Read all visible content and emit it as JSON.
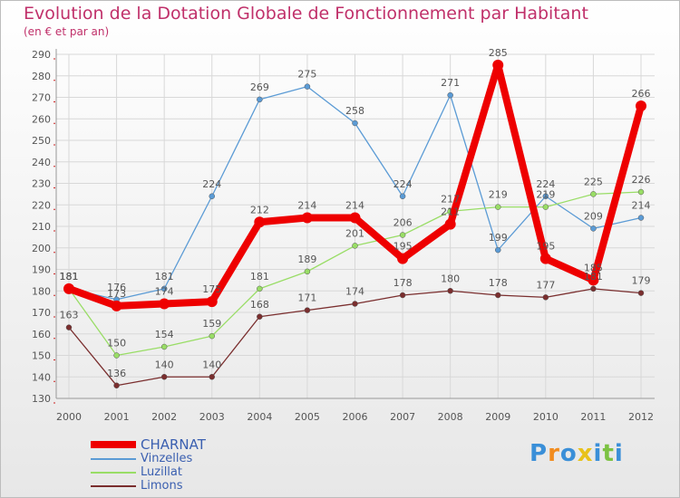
{
  "title": "Evolution de la Dotation Globale de Fonctionnement par Habitant",
  "subtitle": "(en € et par an)",
  "logo": "Proxiti",
  "colors": {
    "title": "#c0306a",
    "axis": "#999999",
    "grid": "#d8d8d8",
    "label": "#555555",
    "legend_text": "#3a5fb0"
  },
  "chart_data": {
    "type": "line",
    "title": "Evolution de la Dotation Globale de Fonctionnement par Habitant",
    "subtitle": "(en € et par an)",
    "xlabel": "",
    "ylabel": "",
    "x": [
      "2000",
      "2001",
      "2002",
      "2003",
      "2004",
      "2005",
      "2006",
      "2007",
      "2008",
      "2009",
      "2010",
      "2011",
      "2012"
    ],
    "ylim": [
      130,
      290
    ],
    "yticks": [
      130,
      140,
      150,
      160,
      170,
      180,
      190,
      200,
      210,
      220,
      230,
      240,
      250,
      260,
      270,
      280,
      290
    ],
    "grid": true,
    "legend_position": "bottom-left",
    "series": [
      {
        "name": "Vinzelles",
        "color": "#5b9bd5",
        "values": [
          181,
          176,
          181,
          224,
          269,
          275,
          258,
          224,
          271,
          199,
          224,
          209,
          214
        ]
      },
      {
        "name": "Luzillat",
        "color": "#99dd66",
        "values": [
          181,
          150,
          154,
          159,
          181,
          189,
          201,
          206,
          217,
          219,
          219,
          225,
          226
        ]
      },
      {
        "name": "Limons",
        "color": "#7a2e2e",
        "values": [
          163,
          136,
          140,
          140,
          168,
          171,
          174,
          178,
          180,
          178,
          177,
          181,
          179
        ]
      },
      {
        "name": "CHARNAT",
        "color": "#ee0000",
        "values": [
          181,
          173,
          174,
          175,
          212,
          214,
          214,
          195,
          211,
          285,
          195,
          185,
          266
        ]
      }
    ],
    "legend": [
      "CHARNAT",
      "Vinzelles",
      "Luzillat",
      "Limons"
    ]
  }
}
